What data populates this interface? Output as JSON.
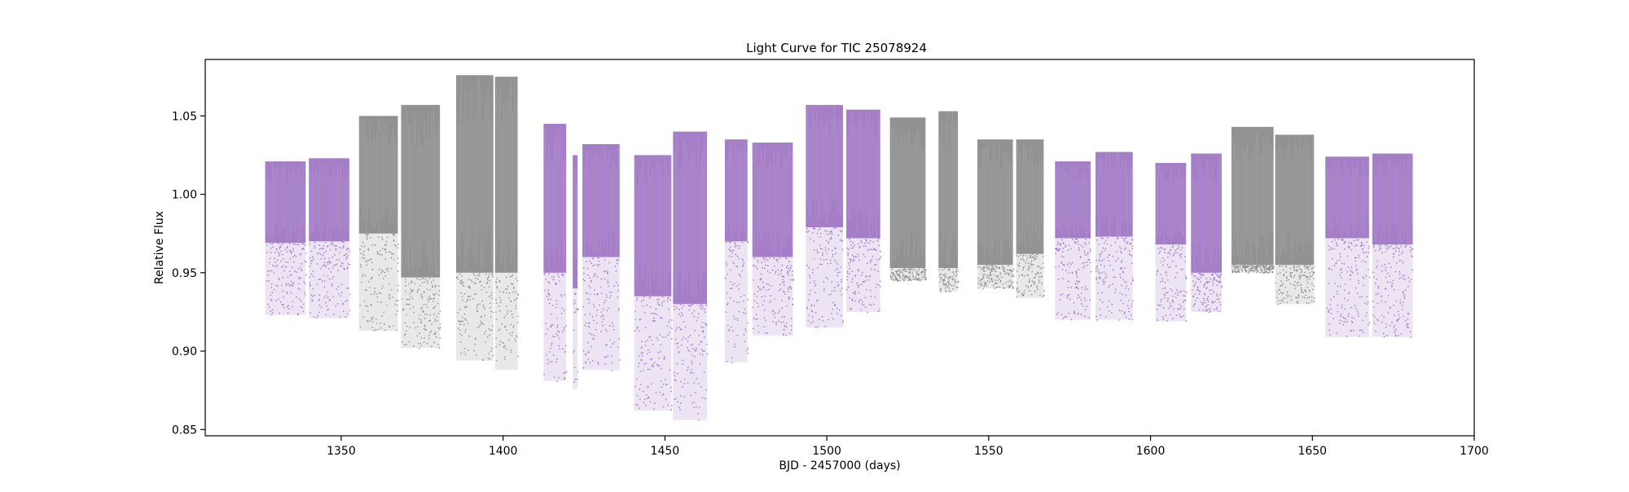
{
  "chart_data": {
    "type": "scatter",
    "title": "Light Curve for TIC 25078924",
    "xlabel": "BJD - 2457000 (days)",
    "ylabel": "Relative Flux",
    "xlim": [
      1308,
      1700
    ],
    "ylim": [
      0.846,
      1.086
    ],
    "xticks": [
      1350,
      1400,
      1450,
      1500,
      1550,
      1600,
      1650,
      1700
    ],
    "xtick_labels": [
      "1350",
      "1400",
      "1450",
      "1500",
      "1550",
      "1600",
      "1650",
      "1700"
    ],
    "yticks": [
      0.85,
      0.9,
      0.95,
      1.0,
      1.05
    ],
    "ytick_labels": [
      "0.85",
      "0.90",
      "0.95",
      "1.00",
      "1.05"
    ],
    "grid": false,
    "colors": {
      "purple": "#9467bd",
      "gray": "#7f7f7f"
    },
    "segments": [
      {
        "x": [
          1326.5,
          1339.0
        ],
        "core": [
          0.969,
          1.021
        ],
        "tail": [
          0.923,
          0.969
        ],
        "color": "purple"
      },
      {
        "x": [
          1340.0,
          1352.5
        ],
        "core": [
          0.97,
          1.023
        ],
        "tail": [
          0.921,
          0.97
        ],
        "color": "purple"
      },
      {
        "x": [
          1355.5,
          1367.5
        ],
        "core": [
          0.975,
          1.05
        ],
        "tail": [
          0.913,
          0.975
        ],
        "color": "gray"
      },
      {
        "x": [
          1368.5,
          1380.5
        ],
        "core": [
          0.947,
          1.057
        ],
        "tail": [
          0.902,
          0.947
        ],
        "color": "gray"
      },
      {
        "x": [
          1385.5,
          1397.0
        ],
        "core": [
          0.95,
          1.076
        ],
        "tail": [
          0.894,
          0.95
        ],
        "color": "gray"
      },
      {
        "x": [
          1397.5,
          1404.5
        ],
        "core": [
          0.95,
          1.075
        ],
        "tail": [
          0.888,
          0.95
        ],
        "color": "gray"
      },
      {
        "x": [
          1412.5,
          1419.5
        ],
        "core": [
          0.95,
          1.045
        ],
        "tail": [
          0.881,
          0.95
        ],
        "color": "purple"
      },
      {
        "x": [
          1421.5,
          1423.0
        ],
        "core": [
          0.94,
          1.025
        ],
        "tail": [
          0.876,
          0.94
        ],
        "color": "purple"
      },
      {
        "x": [
          1424.5,
          1436.0
        ],
        "core": [
          0.96,
          1.032
        ],
        "tail": [
          0.888,
          0.96
        ],
        "color": "purple"
      },
      {
        "x": [
          1440.5,
          1452.0
        ],
        "core": [
          0.935,
          1.025
        ],
        "tail": [
          0.862,
          0.935
        ],
        "color": "purple"
      },
      {
        "x": [
          1452.5,
          1463.0
        ],
        "core": [
          0.93,
          1.04
        ],
        "tail": [
          0.856,
          0.93
        ],
        "color": "purple"
      },
      {
        "x": [
          1468.5,
          1475.5
        ],
        "core": [
          0.97,
          1.035
        ],
        "tail": [
          0.893,
          0.97
        ],
        "color": "purple"
      },
      {
        "x": [
          1477.0,
          1489.5
        ],
        "core": [
          0.96,
          1.033
        ],
        "tail": [
          0.91,
          0.96
        ],
        "color": "purple"
      },
      {
        "x": [
          1493.5,
          1505.0
        ],
        "core": [
          0.979,
          1.057
        ],
        "tail": [
          0.915,
          0.979
        ],
        "color": "purple"
      },
      {
        "x": [
          1506.0,
          1516.5
        ],
        "core": [
          0.972,
          1.054
        ],
        "tail": [
          0.925,
          0.972
        ],
        "color": "purple"
      },
      {
        "x": [
          1519.5,
          1530.5
        ],
        "core": [
          0.953,
          1.049
        ],
        "tail": [
          0.945,
          0.953
        ],
        "color": "gray"
      },
      {
        "x": [
          1534.5,
          1540.5
        ],
        "core": [
          0.953,
          1.053
        ],
        "tail": [
          0.938,
          0.953
        ],
        "color": "gray"
      },
      {
        "x": [
          1546.5,
          1557.5
        ],
        "core": [
          0.955,
          1.035
        ],
        "tail": [
          0.94,
          0.955
        ],
        "color": "gray"
      },
      {
        "x": [
          1558.5,
          1567.0
        ],
        "core": [
          0.962,
          1.035
        ],
        "tail": [
          0.934,
          0.962
        ],
        "color": "gray"
      },
      {
        "x": [
          1570.5,
          1581.5
        ],
        "core": [
          0.972,
          1.021
        ],
        "tail": [
          0.92,
          0.972
        ],
        "color": "purple"
      },
      {
        "x": [
          1583.0,
          1594.5
        ],
        "core": [
          0.973,
          1.027
        ],
        "tail": [
          0.92,
          0.973
        ],
        "color": "purple"
      },
      {
        "x": [
          1601.5,
          1611.0
        ],
        "core": [
          0.968,
          1.02
        ],
        "tail": [
          0.919,
          0.968
        ],
        "color": "purple"
      },
      {
        "x": [
          1612.5,
          1622.0
        ],
        "core": [
          0.95,
          1.026
        ],
        "tail": [
          0.925,
          0.95
        ],
        "color": "purple"
      },
      {
        "x": [
          1625.0,
          1638.0
        ],
        "core": [
          0.955,
          1.043
        ],
        "tail": [
          0.95,
          0.955
        ],
        "color": "gray"
      },
      {
        "x": [
          1638.5,
          1650.5
        ],
        "core": [
          0.955,
          1.038
        ],
        "tail": [
          0.93,
          0.955
        ],
        "color": "gray"
      },
      {
        "x": [
          1654.0,
          1667.5
        ],
        "core": [
          0.972,
          1.024
        ],
        "tail": [
          0.909,
          0.972
        ],
        "color": "purple"
      },
      {
        "x": [
          1668.5,
          1681.0
        ],
        "core": [
          0.968,
          1.026
        ],
        "tail": [
          0.909,
          0.968
        ],
        "color": "purple"
      }
    ]
  }
}
